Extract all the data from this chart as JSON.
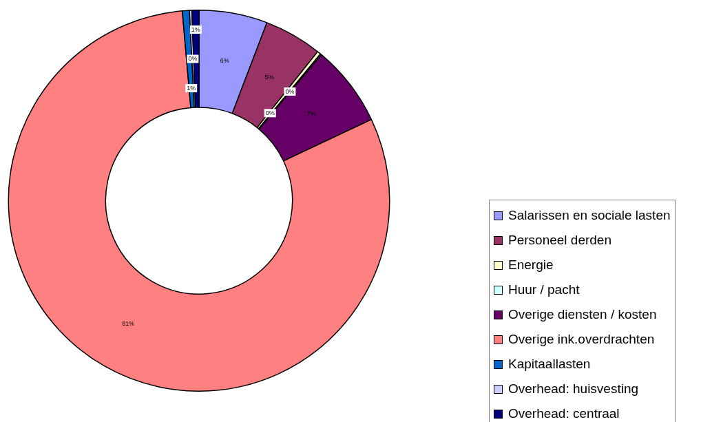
{
  "chart_data": {
    "type": "donut",
    "categories": [
      "Salarissen en sociale lasten",
      "Personeel derden",
      "Energie",
      "Huur / pacht",
      "Overige diensten / kosten",
      "Overige ink.overdrachten",
      "Kapitaallasten",
      "Overhead: huisvesting",
      "Overhead: centraal"
    ],
    "values": [
      5.8,
      4.9,
      0.3,
      0.1,
      6.9,
      80.6,
      0.6,
      0.2,
      0.6
    ],
    "colors": [
      "#9999ff",
      "#993366",
      "#ffffcc",
      "#ccffff",
      "#660066",
      "#ff8080",
      "#0066cc",
      "#ccccff",
      "#000080"
    ],
    "value_labels": [
      "6%",
      "5%",
      "0%",
      "0%",
      "7%",
      "81%",
      "1%",
      "0%",
      "1%"
    ],
    "legend": "right"
  }
}
